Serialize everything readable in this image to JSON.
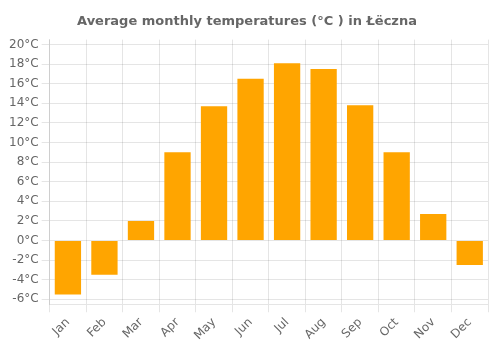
{
  "chart_data": {
    "type": "bar",
    "title": "Average monthly temperatures (°C ) in Łëczna",
    "categories": [
      "Jan",
      "Feb",
      "Mar",
      "Apr",
      "May",
      "Jun",
      "Jul",
      "Aug",
      "Sep",
      "Oct",
      "Nov",
      "Dec"
    ],
    "values": [
      -5.5,
      -3.5,
      2.0,
      9.0,
      13.7,
      16.5,
      18.1,
      17.5,
      13.8,
      9.0,
      2.7,
      -2.5
    ],
    "color": "#FFA500",
    "ylim": [
      -6.5,
      20.5
    ],
    "yticks": [
      {
        "value": -6,
        "label": "-6°C"
      },
      {
        "value": -4,
        "label": "-4°C"
      },
      {
        "value": -2,
        "label": "-2°C"
      },
      {
        "value": 0,
        "label": "0°C"
      },
      {
        "value": 2,
        "label": "2°C"
      },
      {
        "value": 4,
        "label": "4°C"
      },
      {
        "value": 6,
        "label": "6°C"
      },
      {
        "value": 8,
        "label": "8°C"
      },
      {
        "value": 10,
        "label": "10°C"
      },
      {
        "value": 12,
        "label": "12°C"
      },
      {
        "value": 14,
        "label": "14°C"
      },
      {
        "value": 16,
        "label": "16°C"
      },
      {
        "value": 18,
        "label": "18°C"
      },
      {
        "value": 20,
        "label": "20°C"
      }
    ],
    "grid": true
  }
}
